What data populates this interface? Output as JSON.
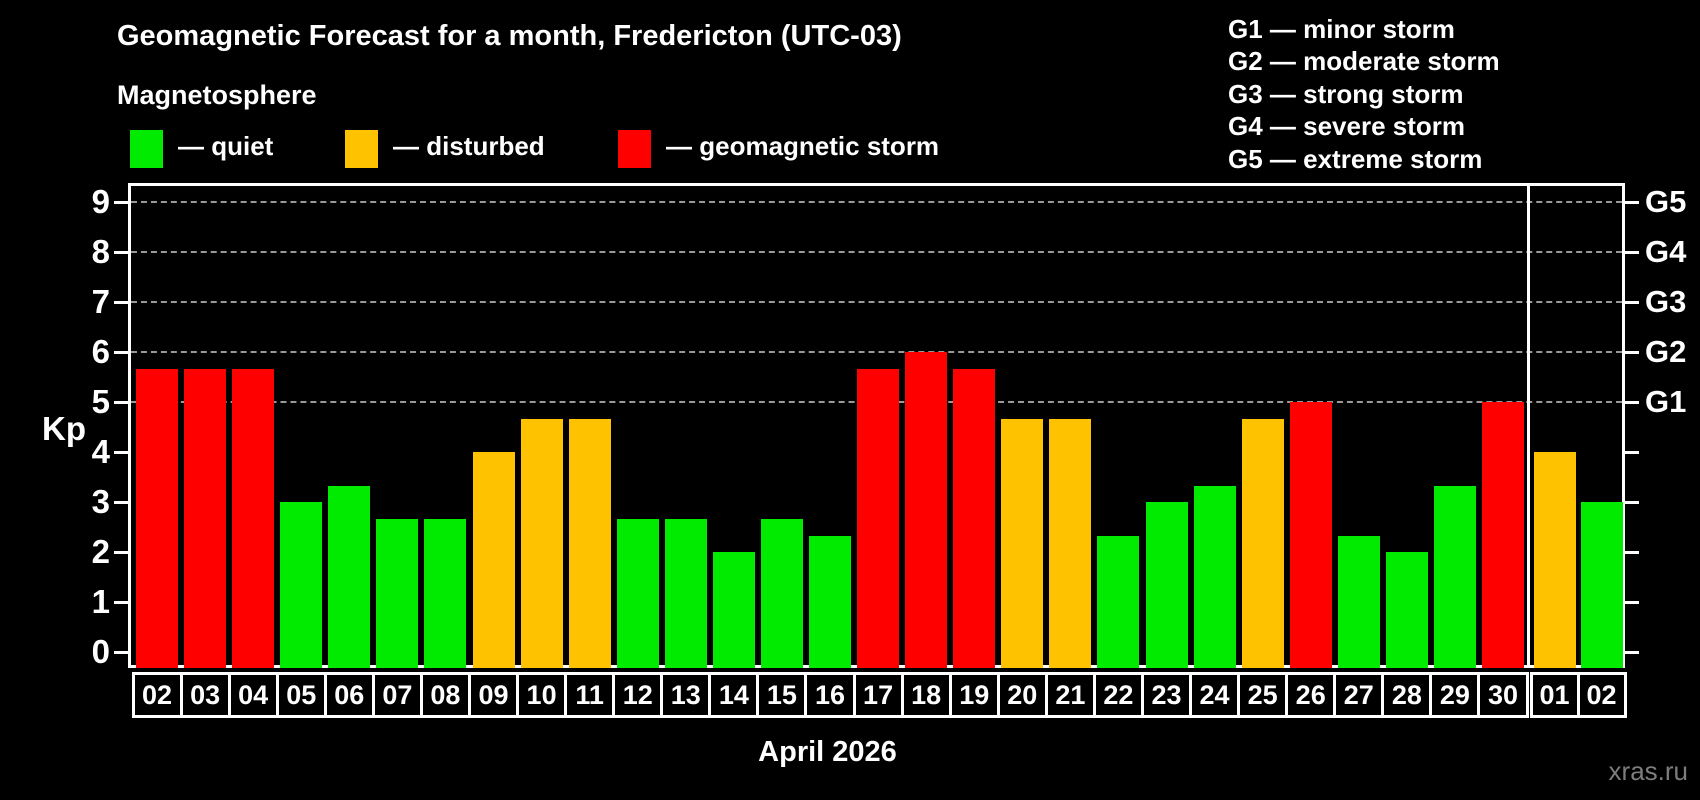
{
  "header": {
    "title": "Geomagnetic Forecast for a month, Fredericton (UTC-03)",
    "subtitle": "Magnetosphere"
  },
  "legend": {
    "items": [
      {
        "label": "— quiet",
        "level": "quiet"
      },
      {
        "label": "— disturbed",
        "level": "disturbed"
      },
      {
        "label": "— geomagnetic storm",
        "level": "storm"
      }
    ]
  },
  "g_scale_legend": [
    "G1 — minor storm",
    "G2 — moderate storm",
    "G3 — strong storm",
    "G4 — severe storm",
    "G5 — extreme storm"
  ],
  "colors": {
    "quiet": "#00EB00",
    "disturbed": "#FFC200",
    "storm": "#FF0000",
    "grid": "#999999",
    "axis": "#FFFFFF",
    "watermark": "#7D7D7D"
  },
  "axes": {
    "y_label": "Kp",
    "x_label": "April 2026",
    "yticks": [
      0,
      1,
      2,
      3,
      4,
      5,
      6,
      7,
      8,
      9
    ],
    "right_labels": [
      {
        "kp": 5,
        "label": "G1"
      },
      {
        "kp": 6,
        "label": "G2"
      },
      {
        "kp": 7,
        "label": "G3"
      },
      {
        "kp": 8,
        "label": "G4"
      },
      {
        "kp": 9,
        "label": "G5"
      }
    ]
  },
  "watermark": "xras.ru",
  "chart_data": {
    "type": "bar",
    "title": "Geomagnetic Forecast for a month, Fredericton (UTC-03)",
    "subtitle": "Magnetosphere",
    "xlabel": "April 2026",
    "ylabel": "Kp",
    "ylim": [
      0,
      9
    ],
    "grid": "dashed horizontal at Kp 5-9 only",
    "legend_position": "top",
    "gridlines_kp": [
      5,
      6,
      7,
      8,
      9
    ],
    "month_separator_after_index": 28,
    "categories": [
      "02",
      "03",
      "04",
      "05",
      "06",
      "07",
      "08",
      "09",
      "10",
      "11",
      "12",
      "13",
      "14",
      "15",
      "16",
      "17",
      "18",
      "19",
      "20",
      "21",
      "22",
      "23",
      "24",
      "25",
      "26",
      "27",
      "28",
      "29",
      "30",
      "01",
      "02"
    ],
    "bars": [
      {
        "day": "02",
        "kp": 5.67,
        "level": "storm"
      },
      {
        "day": "03",
        "kp": 5.67,
        "level": "storm"
      },
      {
        "day": "04",
        "kp": 5.67,
        "level": "storm"
      },
      {
        "day": "05",
        "kp": 3.0,
        "level": "quiet"
      },
      {
        "day": "06",
        "kp": 3.33,
        "level": "quiet"
      },
      {
        "day": "07",
        "kp": 2.67,
        "level": "quiet"
      },
      {
        "day": "08",
        "kp": 2.67,
        "level": "quiet"
      },
      {
        "day": "09",
        "kp": 4.0,
        "level": "disturbed"
      },
      {
        "day": "10",
        "kp": 4.67,
        "level": "disturbed"
      },
      {
        "day": "11",
        "kp": 4.67,
        "level": "disturbed"
      },
      {
        "day": "12",
        "kp": 2.67,
        "level": "quiet"
      },
      {
        "day": "13",
        "kp": 2.67,
        "level": "quiet"
      },
      {
        "day": "14",
        "kp": 2.0,
        "level": "quiet"
      },
      {
        "day": "15",
        "kp": 2.67,
        "level": "quiet"
      },
      {
        "day": "16",
        "kp": 2.33,
        "level": "quiet"
      },
      {
        "day": "17",
        "kp": 5.67,
        "level": "storm"
      },
      {
        "day": "18",
        "kp": 6.0,
        "level": "storm"
      },
      {
        "day": "19",
        "kp": 5.67,
        "level": "storm"
      },
      {
        "day": "20",
        "kp": 4.67,
        "level": "disturbed"
      },
      {
        "day": "21",
        "kp": 4.67,
        "level": "disturbed"
      },
      {
        "day": "22",
        "kp": 2.33,
        "level": "quiet"
      },
      {
        "day": "23",
        "kp": 3.0,
        "level": "quiet"
      },
      {
        "day": "24",
        "kp": 3.33,
        "level": "quiet"
      },
      {
        "day": "25",
        "kp": 4.67,
        "level": "disturbed"
      },
      {
        "day": "26",
        "kp": 5.0,
        "level": "storm"
      },
      {
        "day": "27",
        "kp": 2.33,
        "level": "quiet"
      },
      {
        "day": "28",
        "kp": 2.0,
        "level": "quiet"
      },
      {
        "day": "29",
        "kp": 3.33,
        "level": "quiet"
      },
      {
        "day": "30",
        "kp": 5.0,
        "level": "storm"
      },
      {
        "day": "01",
        "kp": 4.0,
        "level": "disturbed"
      },
      {
        "day": "02",
        "kp": 3.0,
        "level": "quiet"
      }
    ]
  }
}
